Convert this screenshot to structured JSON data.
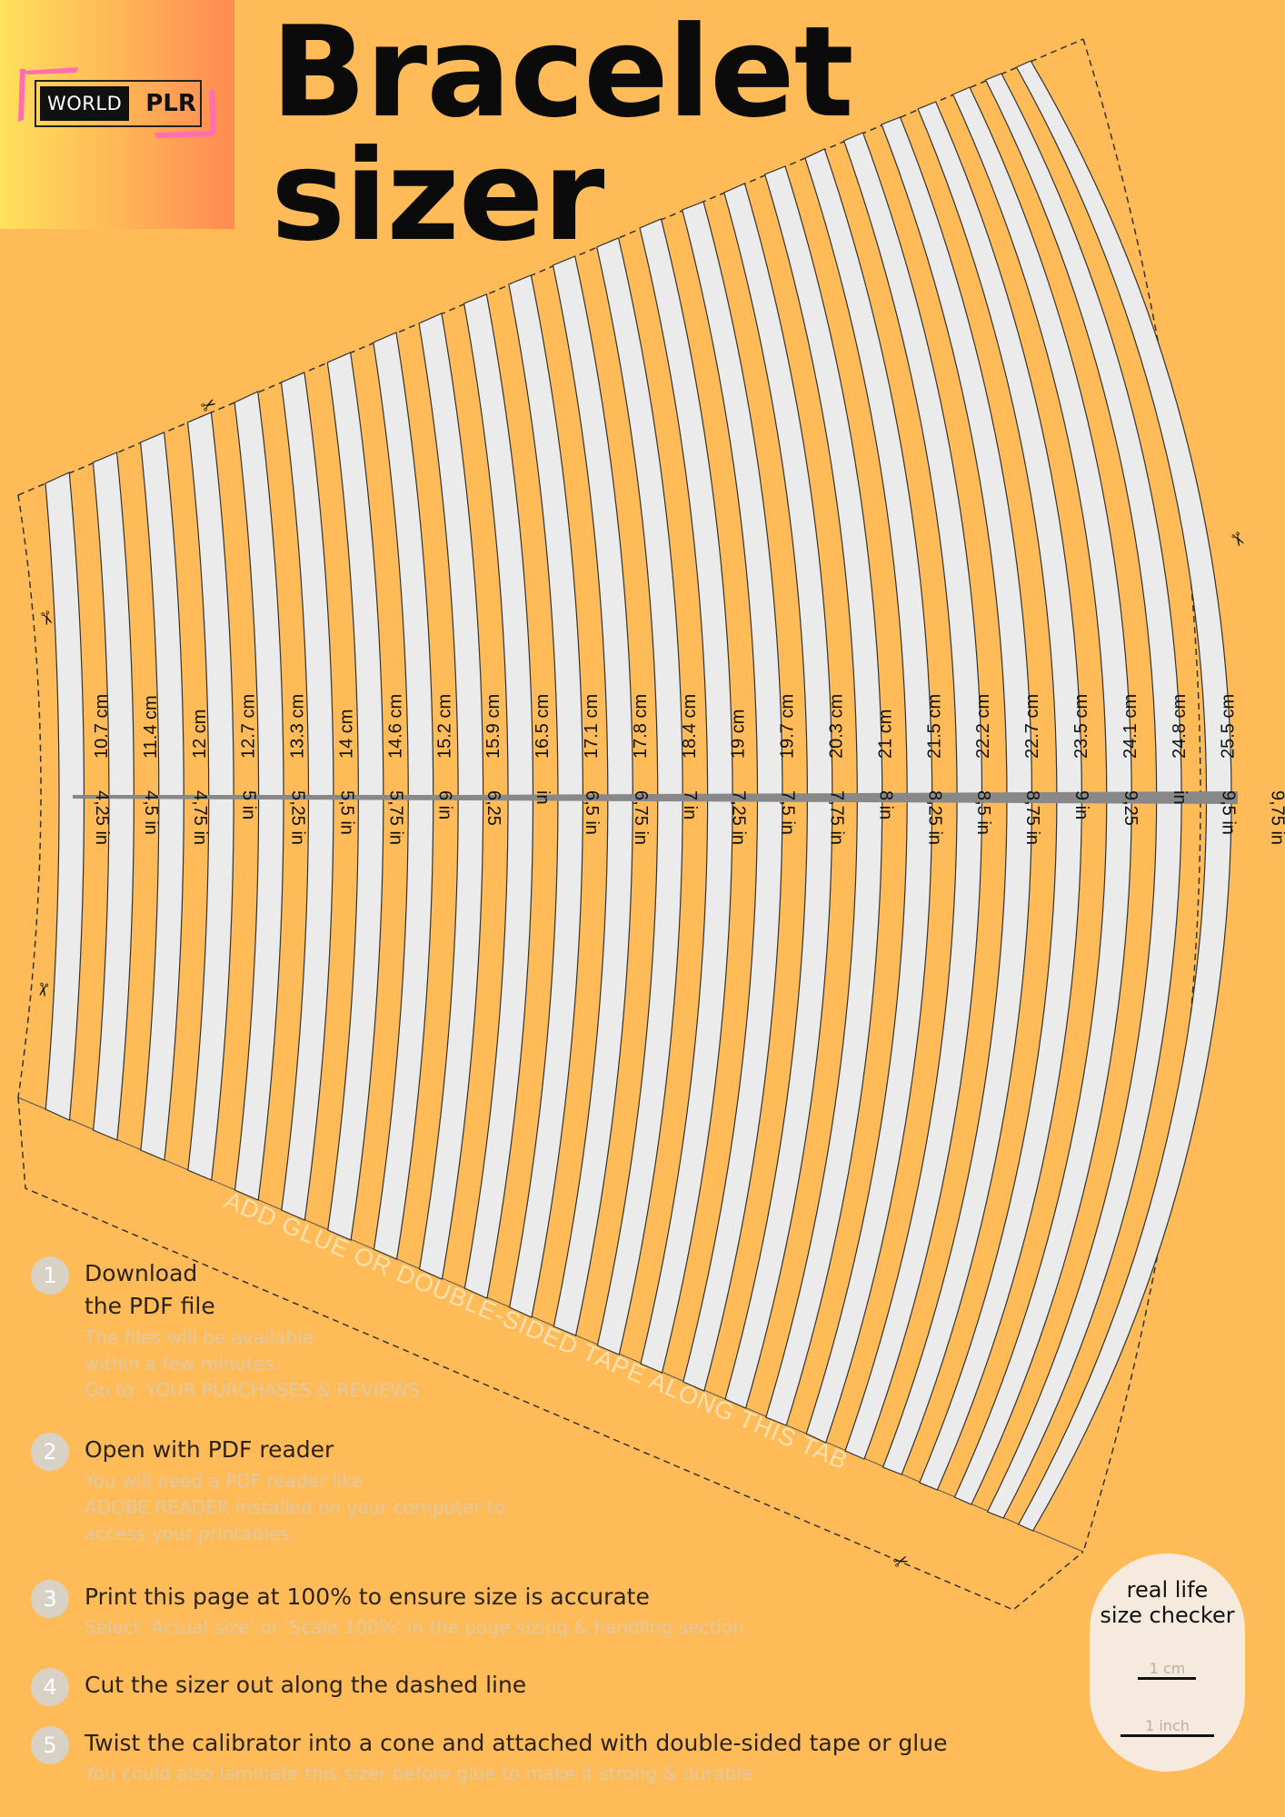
{
  "logo": {
    "world": "WORLD",
    "plr": "PLR"
  },
  "title": {
    "line1": "Bracelet",
    "line2": "sizer"
  },
  "sizer": {
    "cm_labels": [
      "10.7 cm",
      "11.4 cm",
      "12 cm",
      "12.7 cm",
      "13.3 cm",
      "14 cm",
      "14.6 cm",
      "15.2 cm",
      "15.9 cm",
      "16.5 cm",
      "17.1 cm",
      "17.8 cm",
      "18.4 cm",
      "19 cm",
      "19.7 cm",
      "20.3 cm",
      "21 cm",
      "21.5 cm",
      "22.2 cm",
      "22.7 cm",
      "23.5 cm",
      "24.1 cm",
      "24.8 cm",
      "25.5 cm"
    ],
    "in_labels": [
      "4,25 in",
      "4,5 in",
      "4,75 in",
      "5 in",
      "5,25 in",
      "5,5 in",
      "5,75 in",
      "6 in",
      "6,25",
      "in",
      "6,5 in",
      "6,75 in",
      "7 in",
      "7,25 in",
      "7,5 in",
      "7,75 in",
      "8 in",
      "8,25 in",
      "8,5 in",
      "8,75 in",
      "9 in",
      "9,25",
      "in",
      "9,5 in",
      "9,75 in"
    ],
    "tab_text": "ADD GLUE OR DOUBLE-SIDED TAPE ALONG THIS TAB",
    "colors": {
      "band": "#EBEBEB",
      "band_line": "#333333",
      "scale_bar": "#888888",
      "background": "#FFBB57"
    }
  },
  "steps": [
    {
      "num": "1",
      "title": "Download\nthe PDF file",
      "desc": "The files will be available\nwithin a few minutes.\nGo to: YOUR PURCHASES & REVIEWS"
    },
    {
      "num": "2",
      "title": "Open with PDF reader",
      "desc": "You will need a PDF reader like\nADOBE READER installed on your computer to\naccess your printables"
    },
    {
      "num": "3",
      "title": "Print this page at 100% to ensure size is accurate",
      "desc": "Select 'Actual size' or 'Scale 100%' in the page sizing & handling section"
    },
    {
      "num": "4",
      "title": "Cut the sizer out along the dashed line",
      "desc": ""
    },
    {
      "num": "5",
      "title": "Twist the calibrator into a cone and attached with double-sided tape or glue",
      "desc": "You could also laminate this sizer before glue to make it strong & durable"
    }
  ],
  "checker": {
    "title": "real life\nsize checker",
    "cm": "1 cm",
    "inch": "1 inch"
  }
}
